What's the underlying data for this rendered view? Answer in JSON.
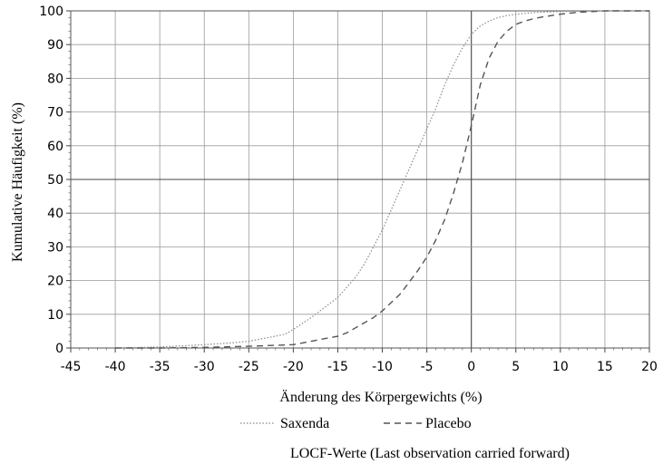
{
  "chart_data": {
    "type": "line",
    "xlabel": "Änderung des Körpergewichts (%)",
    "ylabel": "Kumulative Häufigkeit (%)",
    "xlim": [
      -45,
      20
    ],
    "ylim": [
      0,
      100
    ],
    "xticks": [
      "-45",
      "-40",
      "-35",
      "-30",
      "-25",
      "-20",
      "-15",
      "-10",
      "-5",
      "0",
      "5",
      "10",
      "15",
      "20"
    ],
    "yticks": [
      "0",
      "10",
      "20",
      "30",
      "40",
      "50",
      "60",
      "70",
      "80",
      "90",
      "100"
    ],
    "grid": true,
    "legend_position": "bottom",
    "series": [
      {
        "name": "Saxenda",
        "style": "dotted",
        "color": "#8a8a8a",
        "x": [
          -40,
          -35,
          -30,
          -27,
          -25,
          -23,
          -21,
          -20,
          -18,
          -16,
          -15,
          -14,
          -13,
          -12,
          -11,
          -10,
          -9,
          -8,
          -7,
          -6,
          -5,
          -4,
          -3,
          -2,
          -1,
          0,
          1,
          2,
          3,
          4,
          5,
          7,
          10,
          15,
          20
        ],
        "y": [
          0,
          0.3,
          1,
          1.5,
          2,
          3,
          4,
          5.5,
          9,
          13,
          15,
          18,
          21,
          25,
          30,
          35,
          41,
          47,
          53,
          59,
          65,
          71,
          78,
          84,
          89,
          93,
          95.5,
          97,
          98,
          98.6,
          99,
          99.5,
          99.8,
          100,
          100
        ]
      },
      {
        "name": "Placebo",
        "style": "dashed",
        "color": "#555555",
        "x": [
          -40,
          -35,
          -30,
          -25,
          -20,
          -18,
          -16,
          -15,
          -14,
          -13,
          -12,
          -11,
          -10,
          -9,
          -8,
          -7,
          -6,
          -5,
          -4,
          -3,
          -2,
          -1,
          0,
          1,
          2,
          3,
          4,
          5,
          6,
          7,
          8,
          10,
          12,
          15,
          20
        ],
        "y": [
          0,
          0,
          0.2,
          0.5,
          1,
          2,
          3,
          3.5,
          4.5,
          6,
          7.5,
          9,
          11,
          13.5,
          16,
          19.5,
          23,
          27,
          32,
          38,
          46,
          55,
          66,
          78,
          86,
          91,
          94,
          96,
          97,
          97.7,
          98.2,
          99,
          99.6,
          100,
          100
        ]
      }
    ],
    "note": "LOCF-Werte (Last observation carried forward)"
  }
}
